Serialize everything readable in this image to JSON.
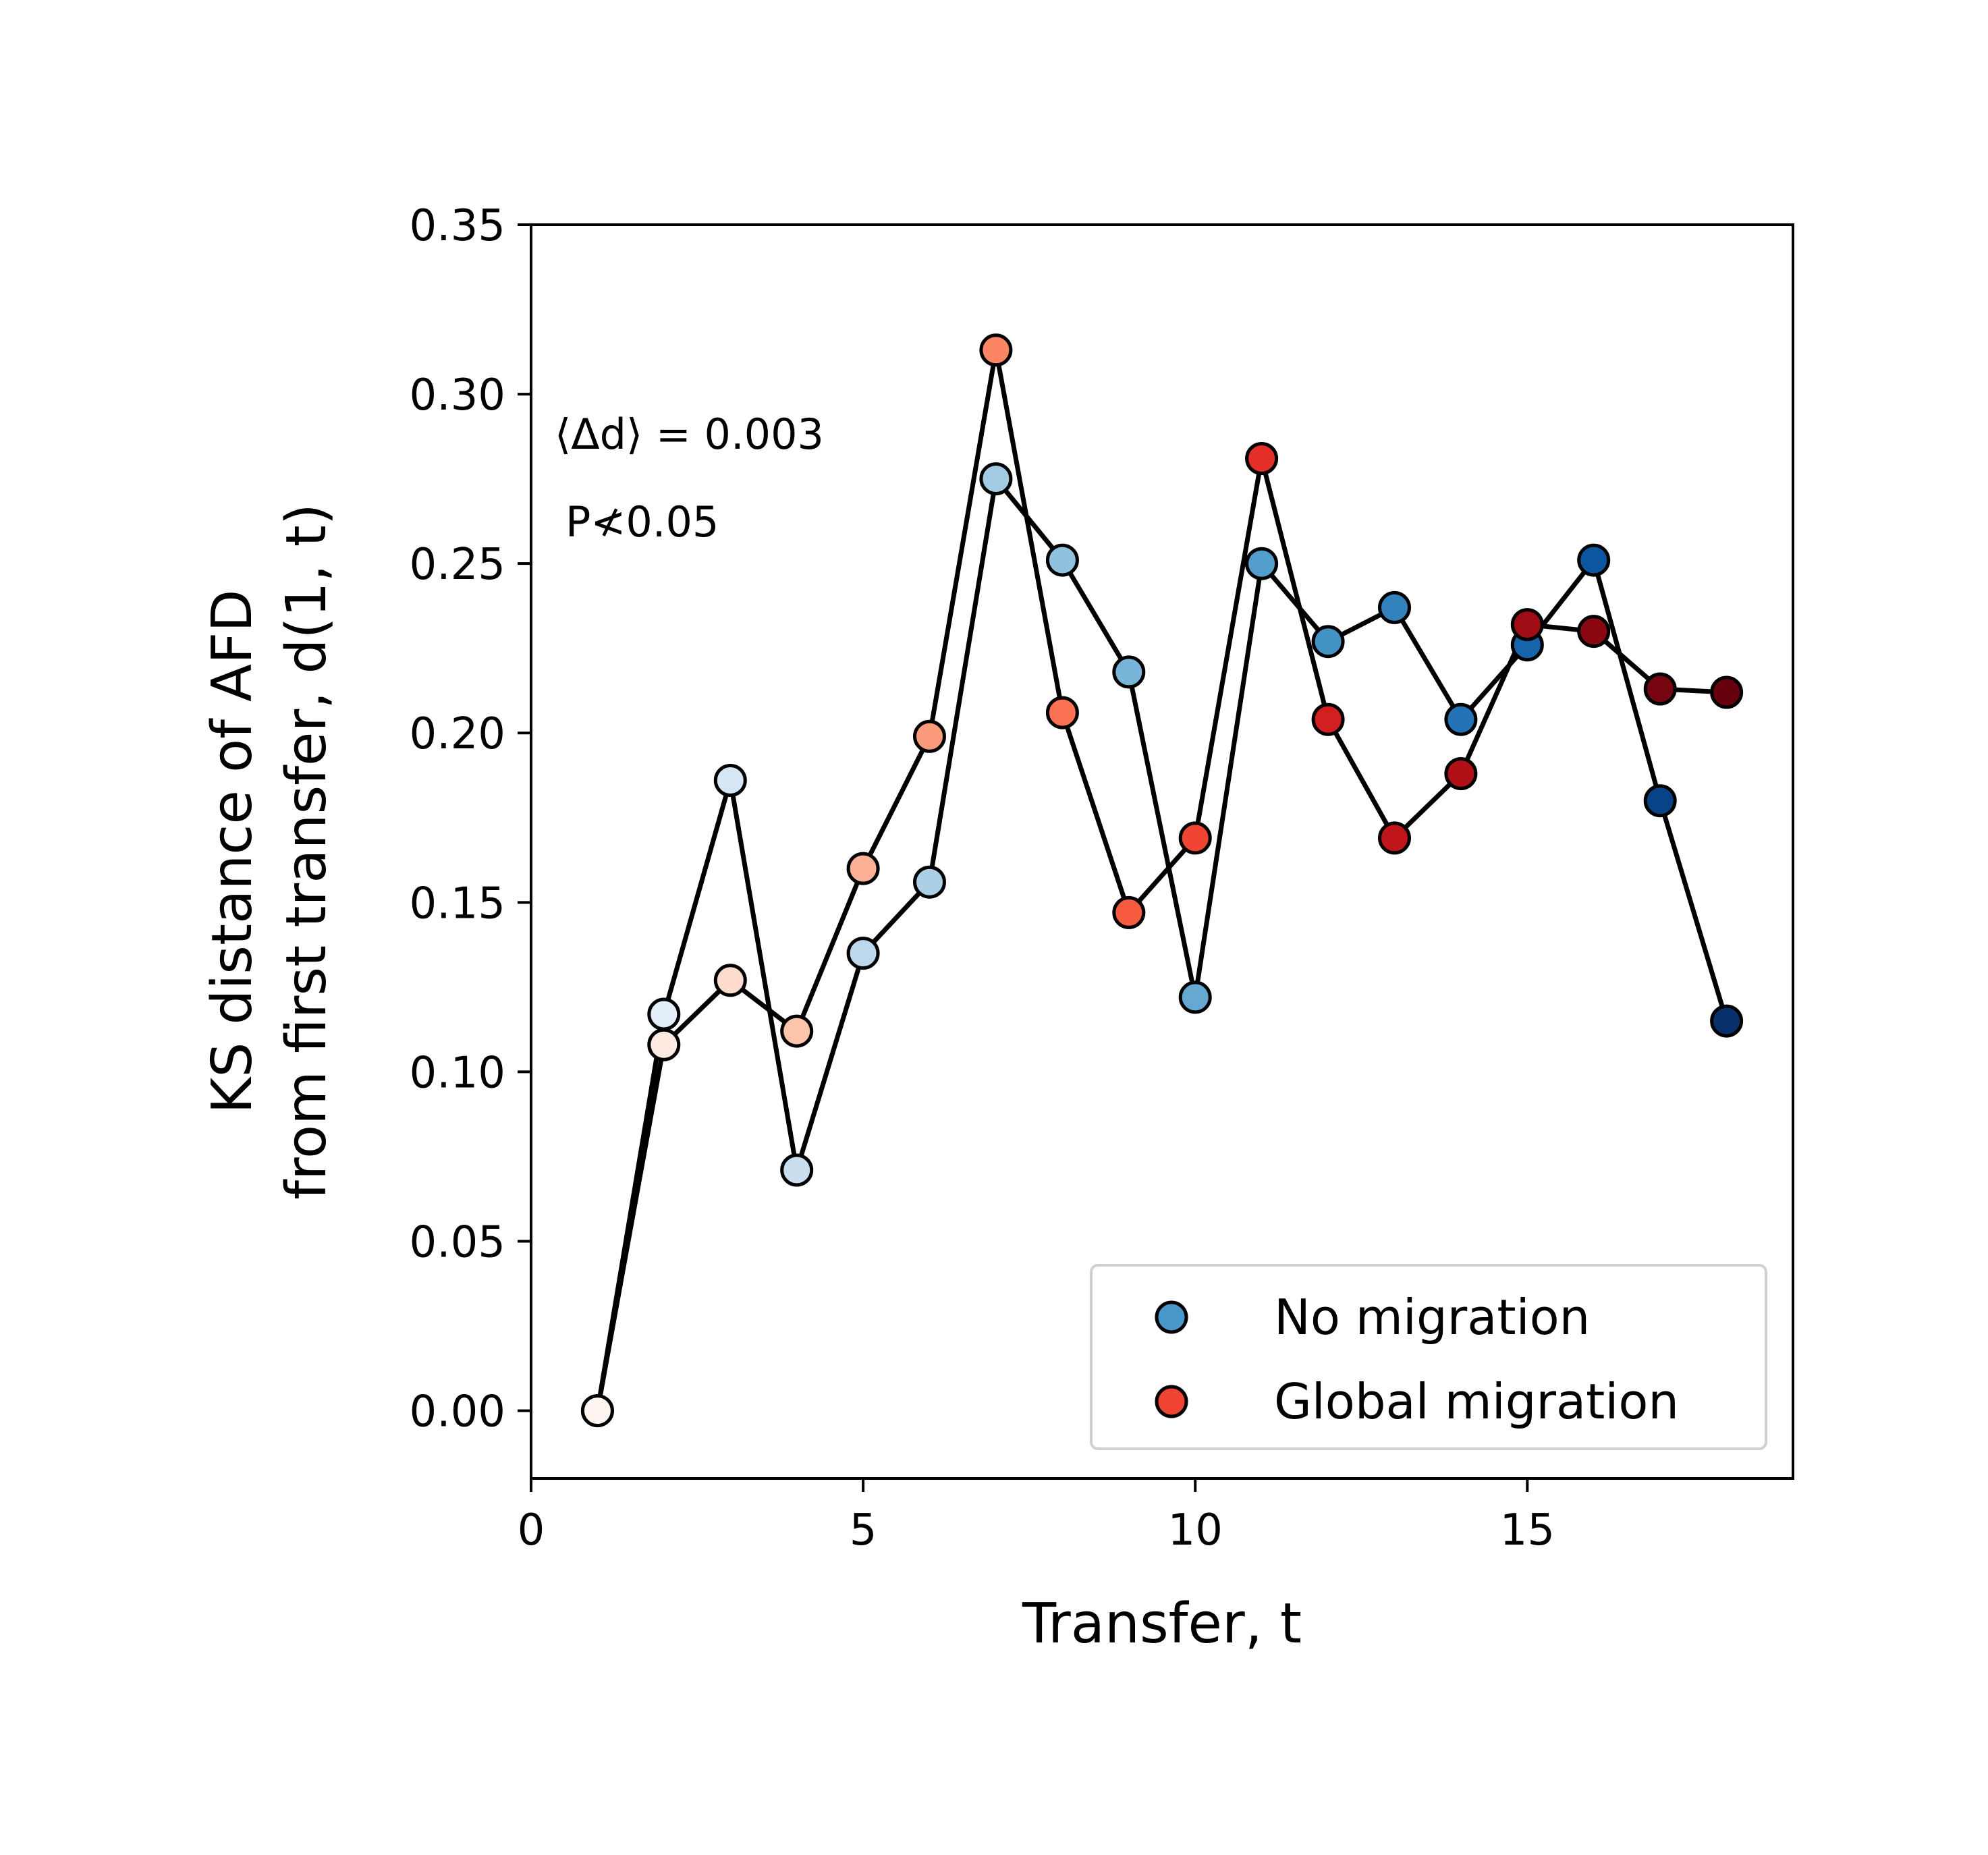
{
  "chart_data": {
    "type": "line",
    "xlabel": "Transfer, t",
    "ylabel_line1": "KS distance of AFD",
    "ylabel_line2": "from first transfer, d(1, t)",
    "xlim": [
      0,
      19
    ],
    "ylim": [
      -0.02,
      0.35
    ],
    "xticks": [
      0,
      5,
      10,
      15
    ],
    "yticks": [
      0.0,
      0.05,
      0.1,
      0.15,
      0.2,
      0.25,
      0.3,
      0.35
    ],
    "ytick_labels": [
      "0.00",
      "0.05",
      "0.10",
      "0.15",
      "0.20",
      "0.25",
      "0.30",
      "0.35"
    ],
    "xtick_labels": [
      "0",
      "5",
      "10",
      "15"
    ],
    "annotation_line1": "⟨Δd⟩ = 0.003",
    "annotation_line2": "P≮0.05",
    "legend_position": "lower-right",
    "line_color": "#000000",
    "series": [
      {
        "name": "No migration",
        "legend_color": "#4a98c9",
        "x": [
          1,
          2,
          3,
          4,
          5,
          6,
          7,
          8,
          9,
          10,
          11,
          12,
          13,
          14,
          15,
          16,
          17,
          18
        ],
        "y": [
          0.0,
          0.117,
          0.186,
          0.071,
          0.135,
          0.156,
          0.275,
          0.251,
          0.218,
          0.122,
          0.25,
          0.227,
          0.237,
          0.204,
          0.226,
          0.251,
          0.18,
          0.115
        ],
        "colors": [
          "#fff5f0",
          "#e3eef9",
          "#d6e6f4",
          "#cadef0",
          "#bdd7ec",
          "#abd0e6",
          "#a1cbe2",
          "#8fc2de",
          "#79b5d9",
          "#65a9d3",
          "#539ecd",
          "#4292c6",
          "#3282be",
          "#2373b6",
          "#1764ab",
          "#0c56a0",
          "#094387",
          "#08306b"
        ]
      },
      {
        "name": "Global migration",
        "legend_color": "#f14432",
        "x": [
          1,
          2,
          3,
          4,
          5,
          6,
          7,
          8,
          9,
          10,
          11,
          12,
          13,
          14,
          15,
          16,
          17,
          18
        ],
        "y": [
          0.0,
          0.108,
          0.127,
          0.112,
          0.16,
          0.199,
          0.313,
          0.206,
          0.147,
          0.169,
          0.281,
          0.204,
          0.169,
          0.188,
          0.232,
          0.23,
          0.213,
          0.212
        ],
        "colors": [
          "#fff5f0",
          "#feeae1",
          "#fedbcc",
          "#fcc5ab",
          "#fcb095",
          "#fc9b7c",
          "#fc8564",
          "#fb7252",
          "#f75b40",
          "#f14432",
          "#e32f27",
          "#d21f20",
          "#bf151b",
          "#af1117",
          "#9e0d14",
          "#8a0812",
          "#760510",
          "#67000d"
        ]
      }
    ]
  }
}
